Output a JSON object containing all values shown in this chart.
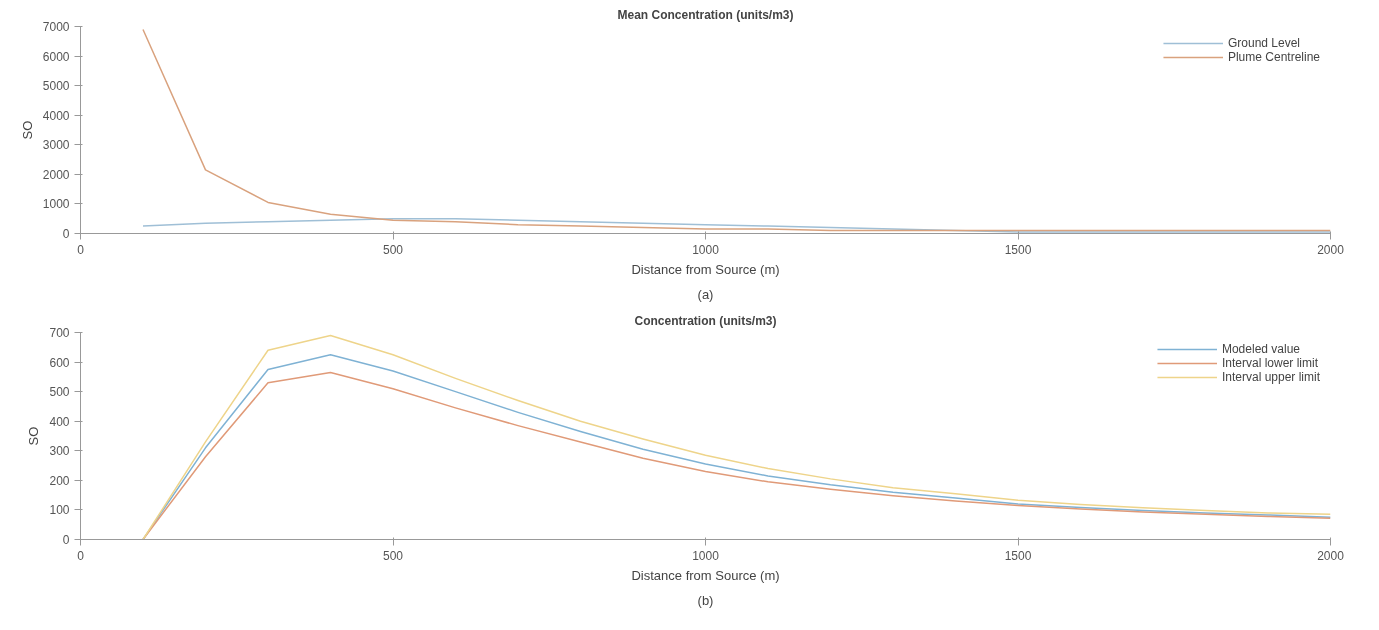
{
  "chart_data": [
    {
      "type": "line",
      "title": "Mean Concentration (units/m3)",
      "xlabel": "Distance from Source (m)",
      "ylabel": "SO",
      "annotations": [
        "(a)"
      ],
      "xlim": [
        0,
        2000
      ],
      "xticks": [
        0,
        500,
        1000,
        1500,
        2000
      ],
      "ylim": [
        0,
        7000
      ],
      "yticks": [
        0,
        1000,
        2000,
        3000,
        4000,
        5000,
        6000,
        7000
      ],
      "grid": false,
      "legend": "top right",
      "line_style": "solid",
      "x": [
        100,
        200,
        300,
        400,
        500,
        600,
        700,
        800,
        900,
        1000,
        1100,
        1200,
        1300,
        1400,
        1500,
        1600,
        1700,
        1800,
        1900,
        2000
      ],
      "series": [
        {
          "name": "Ground Level",
          "color": "#9fbfd6",
          "values": [
            250,
            350,
            400,
            450,
            500,
            500,
            450,
            400,
            350,
            300,
            250,
            200,
            150,
            100,
            50,
            50,
            50,
            50,
            50,
            50
          ]
        },
        {
          "name": "Plume Centreline",
          "color": "#d9a27e",
          "values": [
            6900,
            2150,
            1050,
            650,
            450,
            400,
            300,
            250,
            200,
            150,
            150,
            100,
            100,
            100,
            100,
            100,
            100,
            100,
            100,
            100
          ]
        }
      ]
    },
    {
      "type": "line",
      "title": "Concentration (units/m3)",
      "xlabel": "Distance from Source (m)",
      "ylabel": "SO",
      "annotations": [
        "(b)"
      ],
      "xlim": [
        0,
        2000
      ],
      "xticks": [
        0,
        500,
        1000,
        1500,
        2000
      ],
      "ylim": [
        0,
        700
      ],
      "yticks": [
        0,
        100,
        200,
        300,
        400,
        500,
        600,
        700
      ],
      "grid": false,
      "legend": "top right",
      "line_style": "solid",
      "x": [
        100,
        200,
        300,
        400,
        500,
        600,
        700,
        800,
        900,
        1000,
        1100,
        1200,
        1300,
        1400,
        1500,
        1600,
        1700,
        1800,
        1900,
        2000
      ],
      "series": [
        {
          "name": "Modeled value",
          "color": "#7fb2d4",
          "values": [
            0,
            310,
            575,
            625,
            570,
            500,
            430,
            365,
            305,
            255,
            215,
            185,
            160,
            140,
            120,
            108,
            98,
            90,
            83,
            75
          ]
        },
        {
          "name": "Interval lower limit",
          "color": "#e09a78",
          "values": [
            0,
            280,
            530,
            565,
            510,
            445,
            385,
            330,
            275,
            230,
            195,
            170,
            148,
            130,
            115,
            103,
            93,
            85,
            78,
            72
          ]
        },
        {
          "name": "Interval upper limit",
          "color": "#eed48a",
          "values": [
            0,
            330,
            640,
            690,
            625,
            545,
            470,
            400,
            340,
            285,
            240,
            205,
            175,
            155,
            133,
            118,
            107,
            98,
            90,
            85
          ]
        }
      ]
    }
  ]
}
